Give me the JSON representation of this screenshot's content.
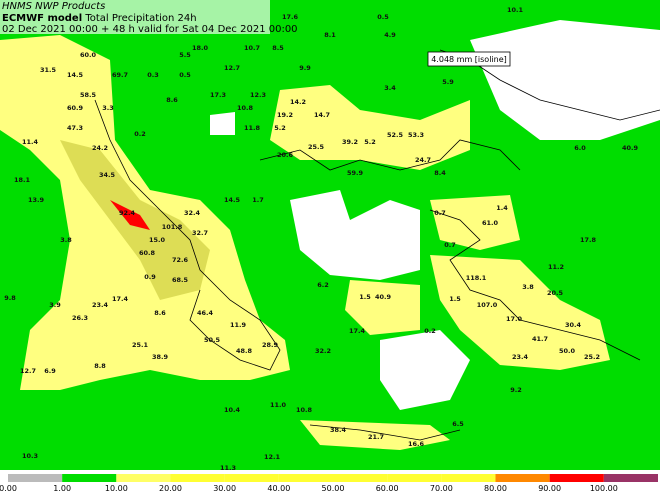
{
  "header": {
    "source": "HNMS NWP Products",
    "model": "ECMWF model",
    "product": "Total Precipitation 24h",
    "valid": "02 Dec 2021 00:00 + 48 h valid for Sat 04 Dec 2021 00:00"
  },
  "isoline_box": "4.048 mm [isoline]",
  "map_labels": [
    "17.6",
    "0.5",
    "10.1",
    "8.1",
    "4.9",
    "18.0",
    "10.7",
    "8.5",
    "60.0",
    "5.5",
    "31.5",
    "14.5",
    "69.7",
    "0.3",
    "0.5",
    "12.7",
    "9.9",
    "5.9",
    "58.5",
    "8.6",
    "17.3",
    "12.3",
    "3.4",
    "14.2",
    "60.9",
    "3.3",
    "10.8",
    "14.7",
    "19.2",
    "47.3",
    "11.8",
    "5.2",
    "0.2",
    "52.5",
    "53.3",
    "11.4",
    "24.2",
    "25.5",
    "39.2",
    "5.2",
    "6.0",
    "40.9",
    "20.6",
    "24.7",
    "18.1",
    "34.5",
    "59.9",
    "8.4",
    "13.9",
    "14.5",
    "1.7",
    "92.4",
    "32.4",
    "0.7",
    "61.0",
    "1.4",
    "101.8",
    "32.7",
    "15.0",
    "0.7",
    "17.8",
    "3.8",
    "60.8",
    "72.6",
    "11.2",
    "118.1",
    "0.9",
    "68.5",
    "6.2",
    "3.8",
    "20.5",
    "9.8",
    "3.9",
    "23.4",
    "17.4",
    "1.5",
    "40.9",
    "1.5",
    "107.0",
    "26.3",
    "46.4",
    "8.6",
    "17.4",
    "0.2",
    "17.0",
    "30.4",
    "11.9",
    "41.7",
    "50.5",
    "25.1",
    "28.9",
    "48.8",
    "32.2",
    "50.0",
    "23.4",
    "25.2",
    "38.9",
    "12.7",
    "6.9",
    "8.8",
    "9.2",
    "11.0",
    "10.4",
    "10.8",
    "38.4",
    "21.7",
    "16.6",
    "6.5",
    "10.3",
    "12.1",
    "11.3"
  ],
  "legend": {
    "ticks": [
      "0.00",
      "1.00",
      "10.00",
      "20.00",
      "30.00",
      "40.00",
      "50.00",
      "60.00",
      "70.00",
      "80.00",
      "90.00",
      "100.00"
    ],
    "colors": [
      "#bbbbbb",
      "#00dd00",
      "#ffff66",
      "#ffff33",
      "#ffff33",
      "#ffff33",
      "#ffff33",
      "#ffff33",
      "#ffff33",
      "#ff8800",
      "#ff0000",
      "#993366"
    ]
  }
}
